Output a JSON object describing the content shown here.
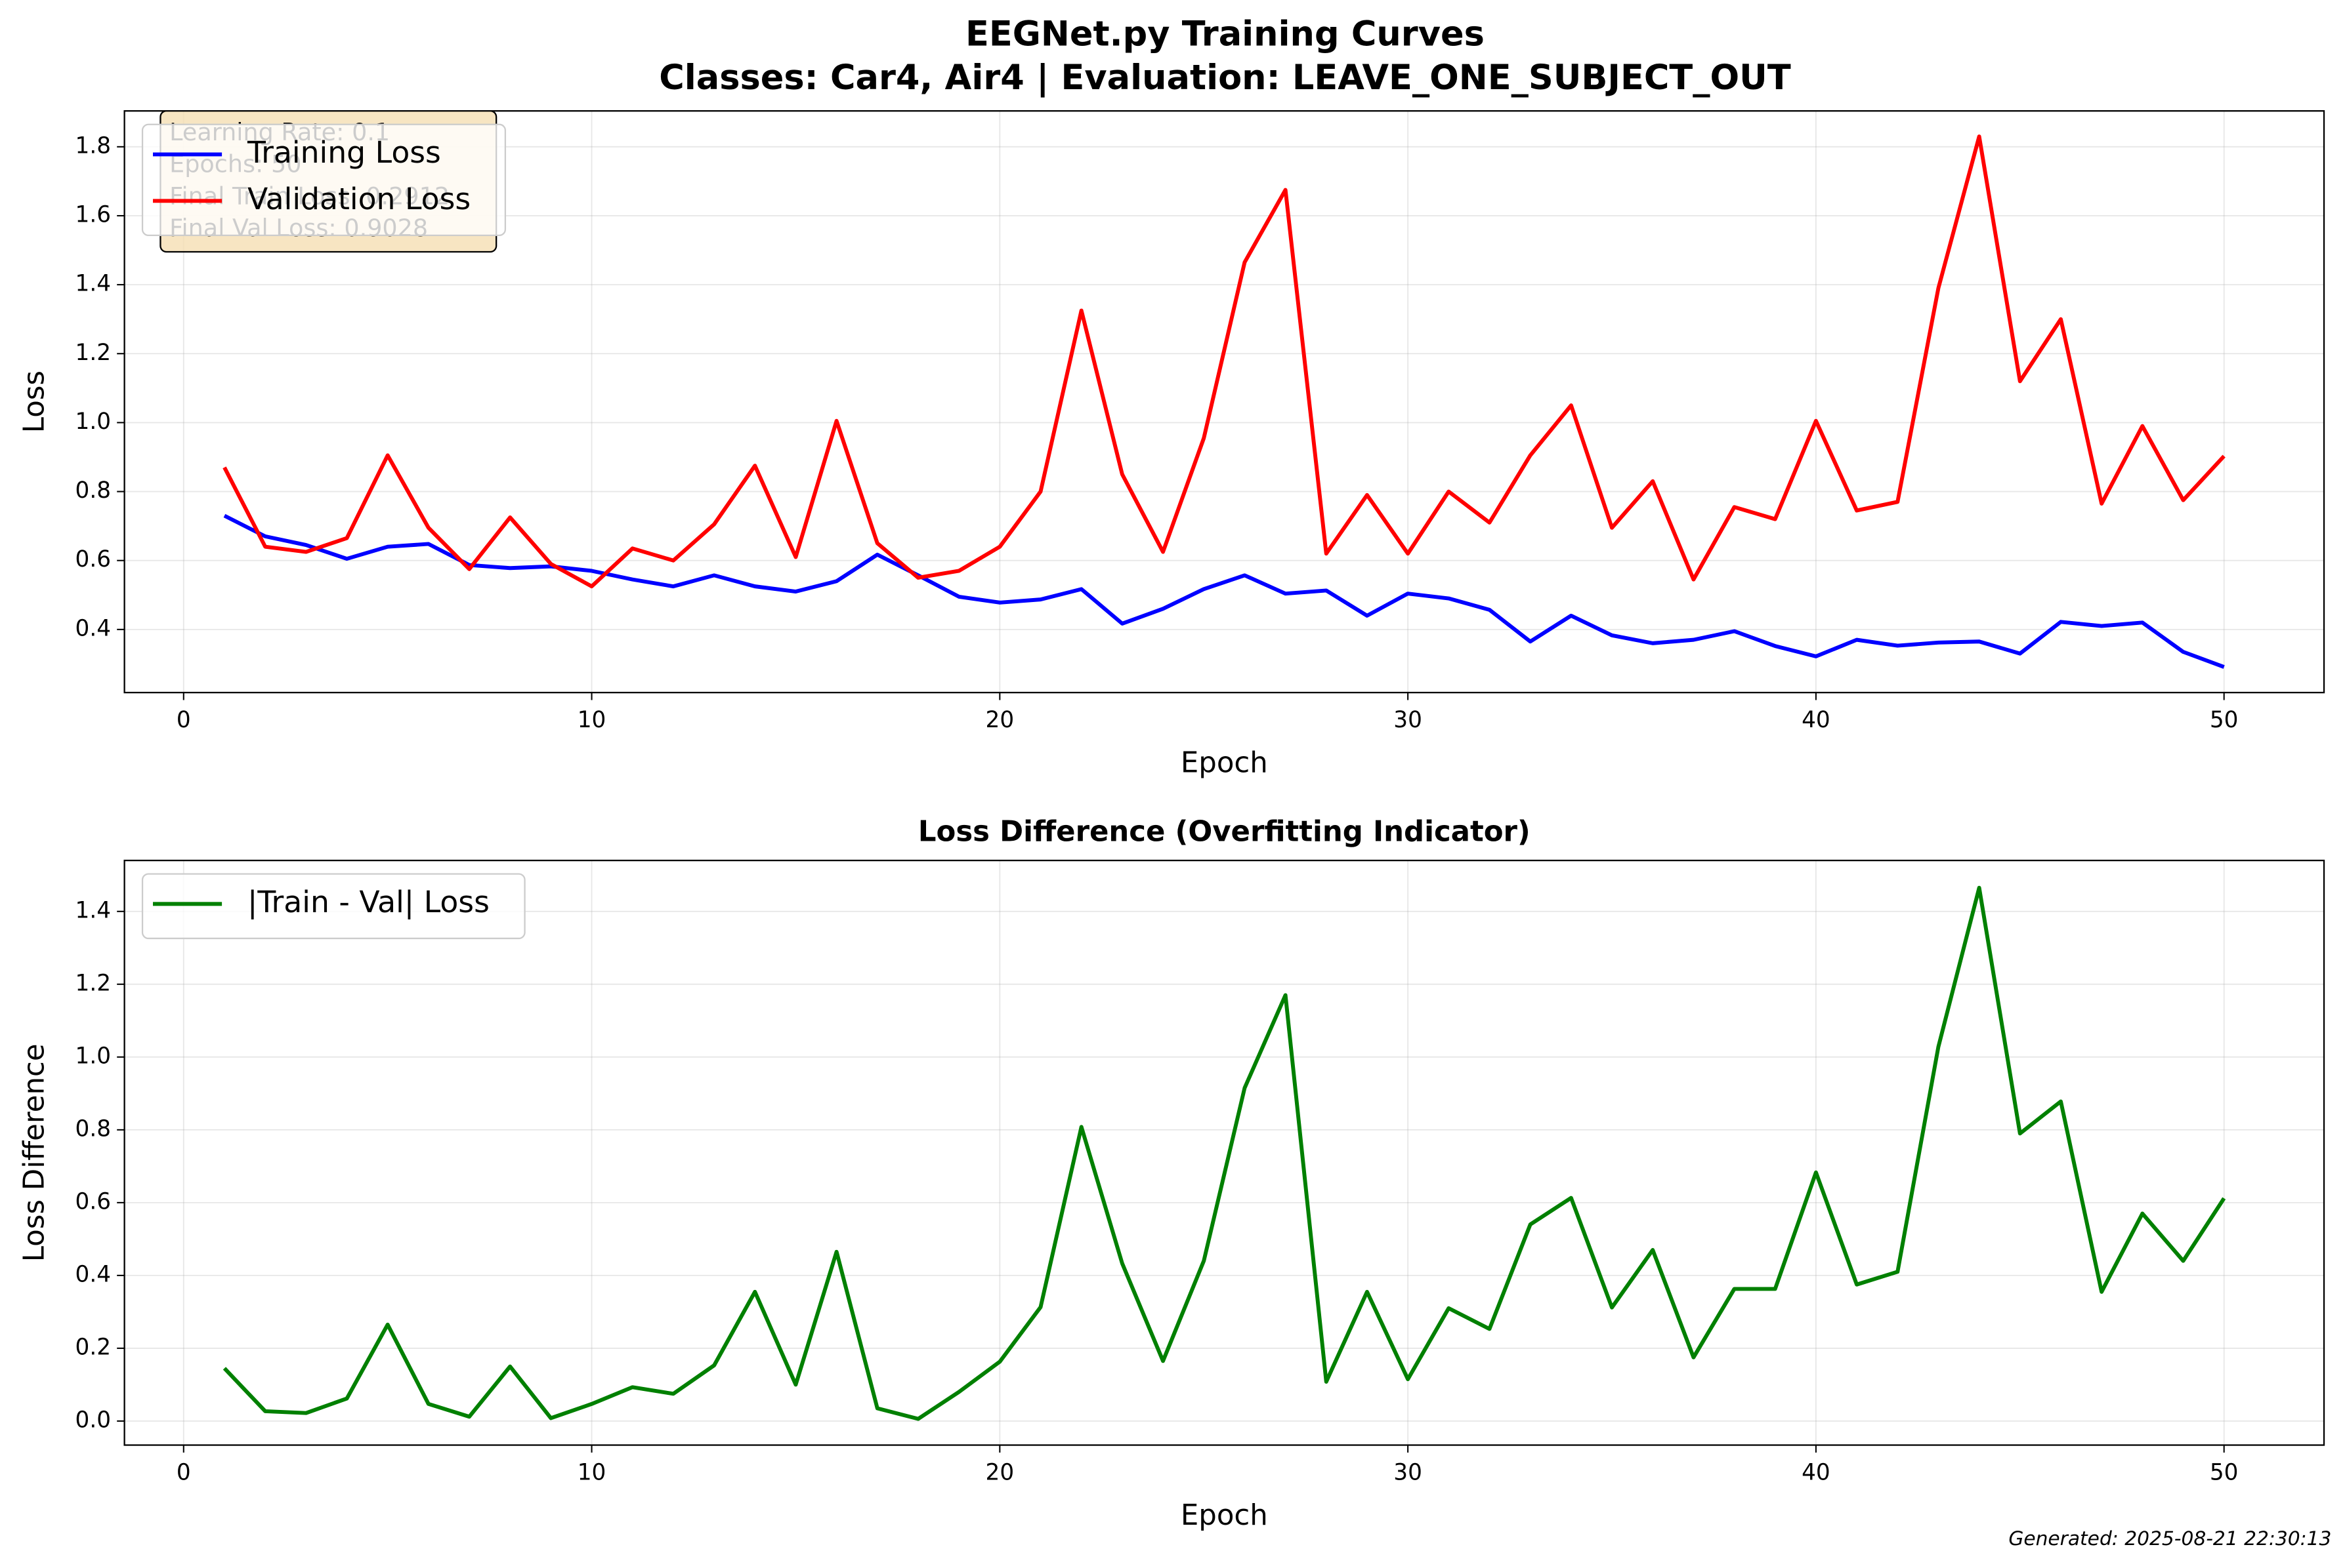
{
  "figure": {
    "title_lines": [
      "EEGNet.py Training Curves",
      "Classes: Car4, Air4 | Evaluation: LEAVE_ONE_SUBJECT_OUT"
    ],
    "footer": "Generated: 2025-08-21 22:30:13"
  },
  "chart_data": [
    {
      "type": "line",
      "xlabel": "Epoch",
      "ylabel": "Loss",
      "x": [
        1,
        2,
        3,
        4,
        5,
        6,
        7,
        8,
        9,
        10,
        11,
        12,
        13,
        14,
        15,
        16,
        17,
        18,
        19,
        20,
        21,
        22,
        23,
        24,
        25,
        26,
        27,
        28,
        29,
        30,
        31,
        32,
        33,
        34,
        35,
        36,
        37,
        38,
        39,
        40,
        41,
        42,
        43,
        44,
        45,
        46,
        47,
        48,
        49,
        50
      ],
      "series": [
        {
          "name": "Training Loss",
          "color": "#0000ff",
          "values": [
            0.73,
            0.67,
            0.645,
            0.605,
            0.64,
            0.648,
            0.587,
            0.578,
            0.583,
            0.57,
            0.545,
            0.525,
            0.557,
            0.525,
            0.51,
            0.54,
            0.617,
            0.557,
            0.495,
            0.478,
            0.487,
            0.517,
            0.417,
            0.46,
            0.517,
            0.557,
            0.504,
            0.513,
            0.44,
            0.504,
            0.49,
            0.457,
            0.365,
            0.44,
            0.383,
            0.36,
            0.37,
            0.395,
            0.352,
            0.322,
            0.37,
            0.353,
            0.362,
            0.365,
            0.33,
            0.422,
            0.41,
            0.42,
            0.335,
            0.2912
          ]
        },
        {
          "name": "Validation Loss",
          "color": "#ff0000",
          "values": [
            0.87,
            0.64,
            0.625,
            0.665,
            0.905,
            0.695,
            0.575,
            0.725,
            0.59,
            0.525,
            0.635,
            0.6,
            0.705,
            0.875,
            0.61,
            1.005,
            0.65,
            0.55,
            0.57,
            0.64,
            0.8,
            1.325,
            0.85,
            0.625,
            0.955,
            1.465,
            1.675,
            0.62,
            0.79,
            0.62,
            0.8,
            0.71,
            0.905,
            1.05,
            0.695,
            0.83,
            0.545,
            0.755,
            0.72,
            1.005,
            0.745,
            0.77,
            1.39,
            1.83,
            1.12,
            1.3,
            0.765,
            0.99,
            0.775,
            0.9028
          ]
        }
      ],
      "xlim": [
        -1.45,
        52.45
      ],
      "ylim": [
        0.217,
        1.904
      ],
      "xticks": [
        0,
        10,
        20,
        30,
        40,
        50
      ],
      "yticks": [
        0.4,
        0.6,
        0.8,
        {
          "value": 1,
          "label": "1.0"
        },
        1.2,
        1.4,
        1.6,
        1.8
      ],
      "grid": true,
      "legend": "upper-left",
      "annotation": [
        "Learning Rate: 0.1",
        "Epochs: 50",
        "Final Train Loss: 0.2912",
        "Final Val Loss: 0.9028"
      ]
    },
    {
      "type": "line",
      "title": "Loss Difference (Overfitting Indicator)",
      "xlabel": "Epoch",
      "ylabel": "Loss Difference",
      "x": [
        1,
        2,
        3,
        4,
        5,
        6,
        7,
        8,
        9,
        10,
        11,
        12,
        13,
        14,
        15,
        16,
        17,
        18,
        19,
        20,
        21,
        22,
        23,
        24,
        25,
        26,
        27,
        28,
        29,
        30,
        31,
        32,
        33,
        34,
        35,
        36,
        37,
        38,
        39,
        40,
        41,
        42,
        43,
        44,
        45,
        46,
        47,
        48,
        49,
        50
      ],
      "series": [
        {
          "name": "|Train - Val| Loss",
          "color": "#008000",
          "values": [
            0.145,
            0.027,
            0.022,
            0.062,
            0.265,
            0.047,
            0.012,
            0.15,
            0.008,
            0.047,
            0.093,
            0.075,
            0.153,
            0.355,
            0.1,
            0.465,
            0.035,
            0.006,
            0.08,
            0.163,
            0.313,
            0.808,
            0.433,
            0.165,
            0.44,
            0.915,
            1.17,
            0.108,
            0.355,
            0.115,
            0.31,
            0.253,
            0.54,
            0.613,
            0.312,
            0.47,
            0.175,
            0.363,
            0.363,
            0.683,
            0.375,
            0.41,
            1.028,
            1.465,
            0.79,
            0.878,
            0.355,
            0.57,
            0.44,
            0.612
          ]
        }
      ],
      "xlim": [
        -1.45,
        52.45
      ],
      "ylim": [
        -0.066,
        1.54
      ],
      "xticks": [
        0,
        10,
        20,
        30,
        40,
        50
      ],
      "yticks": [
        {
          "value": 0,
          "label": "0.0"
        },
        0.2,
        0.4,
        0.6,
        0.8,
        {
          "value": 1,
          "label": "1.0"
        },
        1.2,
        1.4
      ],
      "grid": true,
      "legend": "upper-left"
    }
  ]
}
